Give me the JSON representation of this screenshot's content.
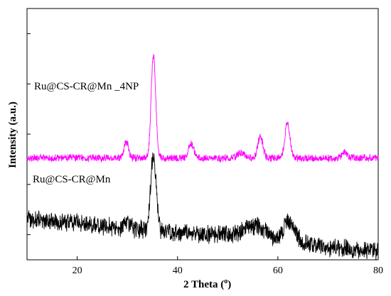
{
  "chart_data": {
    "type": "line",
    "xlabel": "2 Theta (",
    "xlabel_unit": "o",
    "xlabel_close": ")",
    "ylabel": "Intensity (a.u.)",
    "xlim": [
      10,
      80
    ],
    "ylim": [
      0,
      100
    ],
    "y_tick_labels_shown": false,
    "grid": false,
    "x_ticks": [
      20,
      40,
      60,
      80
    ],
    "y_ticks": [
      10,
      30,
      50,
      70,
      90
    ],
    "series": [
      {
        "name": "Ru@CS-CR@Mn _4NP",
        "color": "#ff00ff",
        "baseline": 40.5,
        "noise": 1.3,
        "peaks": [
          {
            "x": 29.8,
            "height": 6.5,
            "width": 0.45
          },
          {
            "x": 35.2,
            "height": 41.0,
            "width": 0.45
          },
          {
            "x": 42.7,
            "height": 6.0,
            "width": 0.5
          },
          {
            "x": 52.6,
            "height": 2.2,
            "width": 0.7
          },
          {
            "x": 56.5,
            "height": 8.5,
            "width": 0.5
          },
          {
            "x": 61.9,
            "height": 14.0,
            "width": 0.5
          },
          {
            "x": 73.3,
            "height": 2.5,
            "width": 0.5
          }
        ]
      },
      {
        "name": "Ru@CS-CR@Mn",
        "color": "#000000",
        "start": 16.5,
        "end": 3.0,
        "noise": 3.2,
        "peaks": [
          {
            "x": 30.0,
            "height": 2.5,
            "width": 0.6
          },
          {
            "x": 35.2,
            "height": 30.0,
            "width": 0.55
          },
          {
            "x": 55.5,
            "height": 4.5,
            "width": 1.8
          },
          {
            "x": 62.3,
            "height": 8.0,
            "width": 1.1
          }
        ]
      }
    ],
    "annotations": [
      {
        "text": "Ru@CS-CR@Mn _4NP",
        "series": 0
      },
      {
        "text": "Ru@CS-CR@Mn",
        "series": 1
      }
    ]
  }
}
